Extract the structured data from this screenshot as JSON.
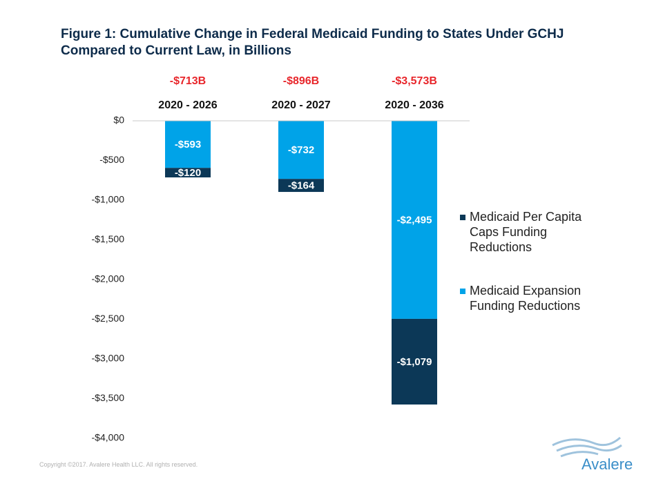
{
  "chart_data": {
    "type": "stacked_bar",
    "title": "Figure 1: Cumulative Change in Federal Medicaid Funding to States Under GCHJ Compared to Current Law, in Billions",
    "categories": [
      "2020 - 2026",
      "2020 - 2027",
      "2020 - 2036"
    ],
    "annotations": [
      "-$713B",
      "-$896B",
      "-$3,573B"
    ],
    "series": [
      {
        "name": "Medicaid Expansion Funding Reductions",
        "color": "#00a3e8",
        "values": [
          -593,
          -732,
          -2495
        ],
        "value_labels": [
          "-$593",
          "-$732",
          "-$2,495"
        ]
      },
      {
        "name": "Medicaid Per Capita Caps Funding Reductions",
        "color": "#0c3857",
        "values": [
          -120,
          -164,
          -1079
        ],
        "value_labels": [
          "-$120",
          "-$164",
          "-$1,079"
        ]
      }
    ],
    "ylim": [
      -4000,
      0
    ],
    "yticks": [
      {
        "value": 0,
        "label": "$0"
      },
      {
        "value": -500,
        "label": "-$500"
      },
      {
        "value": -1000,
        "label": "-$1,000"
      },
      {
        "value": -1500,
        "label": "-$1,500"
      },
      {
        "value": -2000,
        "label": "-$2,000"
      },
      {
        "value": -2500,
        "label": "-$2,500"
      },
      {
        "value": -3000,
        "label": "-$3,000"
      },
      {
        "value": -3500,
        "label": "-$3,500"
      },
      {
        "value": -4000,
        "label": "-$4,000"
      }
    ],
    "grid": false,
    "legend": "right",
    "footer": "Copyright ©2017. Avalere Health LLC. All rights reserved.",
    "logo": "Avalere"
  }
}
